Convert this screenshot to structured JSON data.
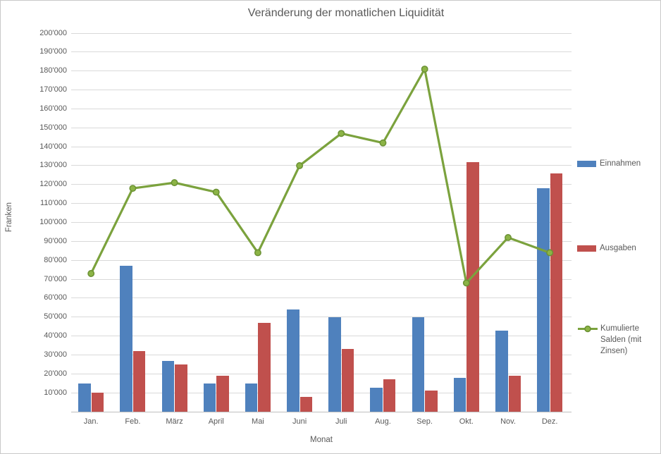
{
  "chart_data": {
    "type": "combo",
    "title": "Veränderung der monatlichen Liquidität",
    "xlabel": "Monat",
    "ylabel": "Franken",
    "categories": [
      "Jan.",
      "Feb.",
      "März",
      "April",
      "Mai",
      "Juni",
      "Juli",
      "Aug.",
      "Sep.",
      "Okt.",
      "Nov.",
      "Dez."
    ],
    "series": [
      {
        "name": "Einnahmen",
        "type": "bar",
        "color": "#4F81BD",
        "values": [
          15000,
          77000,
          27000,
          15000,
          15000,
          54000,
          50000,
          12500,
          50000,
          18000,
          43000,
          118000
        ]
      },
      {
        "name": "Ausgaben",
        "type": "bar",
        "color": "#C0504D",
        "values": [
          10000,
          32000,
          25000,
          19000,
          47000,
          8000,
          33000,
          17000,
          11000,
          132000,
          19000,
          126000
        ]
      },
      {
        "name": "Kumulierte Salden (mit Zinsen)",
        "type": "line",
        "color": "#7BA23D",
        "marker_fill": "#8CB446",
        "marker_stroke": "#6B9134",
        "values": [
          73000,
          118000,
          121000,
          116000,
          84000,
          130000,
          147000,
          142000,
          181000,
          68000,
          92000,
          84000
        ]
      }
    ],
    "ylim": [
      0,
      200000
    ],
    "y_tick_step": 10000,
    "y_tick_labels": [
      "10'000",
      "20'000",
      "30'000",
      "40'000",
      "50'000",
      "60'000",
      "70'000",
      "80'000",
      "90'000",
      "100'000",
      "110'000",
      "120'000",
      "130'000",
      "140'000",
      "150'000",
      "160'000",
      "170'000",
      "180'000",
      "190'000",
      "200'000"
    ],
    "grid": "horizontal",
    "legend_position": "right"
  },
  "colors": {
    "gridline": "#D9D9D9",
    "axis_line": "#BFBFBF",
    "text": "#595959",
    "background": "#FFFFFF"
  }
}
